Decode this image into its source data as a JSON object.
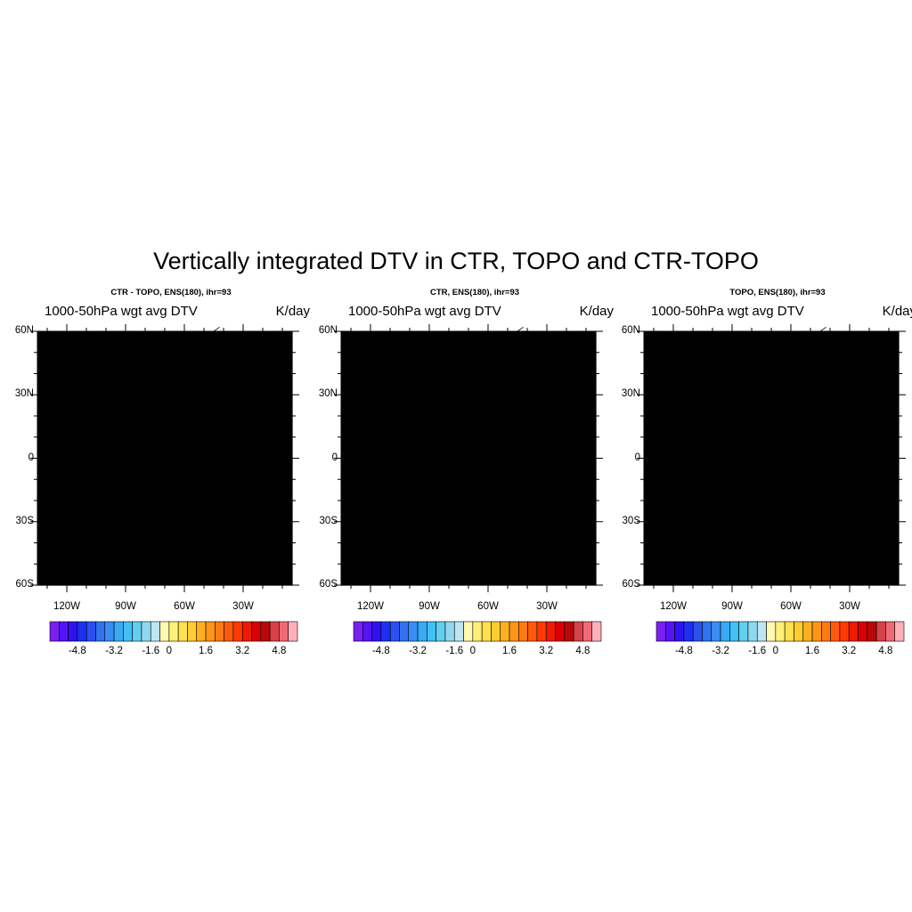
{
  "figure": {
    "title": "Vertically integrated DTV in CTR, TOPO and CTR-TOPO"
  },
  "panels": [
    {
      "title": "CTR - TOPO, ENS(180), ihr=93",
      "left_string": "1000-50hPa wgt avg DTV",
      "right_string": "K/day",
      "pattern": "anomaly"
    },
    {
      "title": "CTR, ENS(180), ihr=93",
      "left_string": "1000-50hPa wgt avg DTV",
      "right_string": "K/day",
      "pattern": "full"
    },
    {
      "title": "TOPO, ENS(180), ihr=93",
      "left_string": "1000-50hPa wgt avg DTV",
      "right_string": "K/day",
      "pattern": "full-flat"
    }
  ],
  "axes": {
    "lat_labels": [
      "60N",
      "30N",
      "0",
      "30S",
      "60S"
    ],
    "lon_labels": [
      "120W",
      "90W",
      "60W",
      "30W"
    ],
    "lon_range": [
      -135,
      -5
    ],
    "lat_range": [
      -60,
      60
    ]
  },
  "colorbar": {
    "tick_labels": [
      "-4.8",
      "-3.2",
      "-1.6",
      "0",
      "1.6",
      "3.2",
      "4.8"
    ],
    "colors": [
      "#7a1ff0",
      "#5414f5",
      "#2f12f0",
      "#1e2ff0",
      "#2a50f0",
      "#3271f0",
      "#3a8df5",
      "#3aaaf5",
      "#40c0f5",
      "#62cff0",
      "#8fd8ef",
      "#bee6f2",
      "#fffab0",
      "#fff07a",
      "#ffe04d",
      "#ffcc33",
      "#ffb020",
      "#ff9518",
      "#ff7a10",
      "#ff5a0a",
      "#ff3a05",
      "#f01a00",
      "#d80000",
      "#b80808",
      "#d8404a",
      "#f06a75",
      "#ffb0b8"
    ],
    "levels_min": -6.4,
    "levels_step": 0.4
  }
}
